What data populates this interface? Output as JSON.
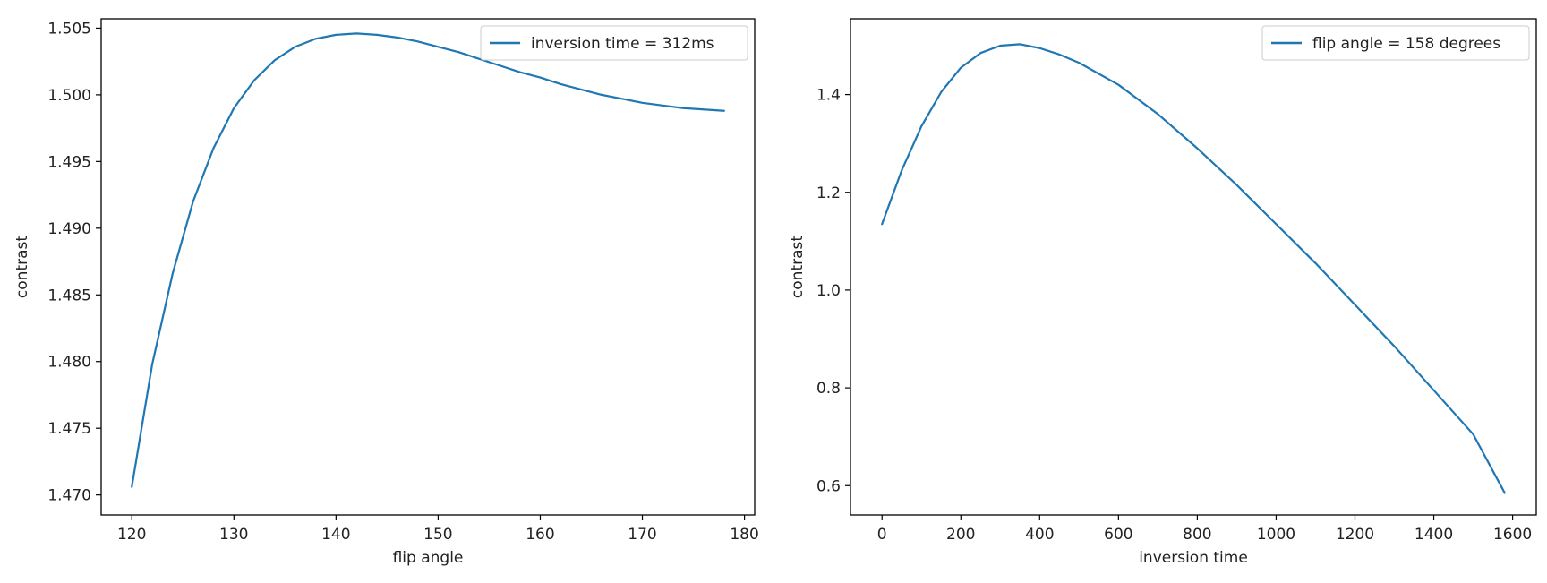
{
  "chart_data": [
    {
      "type": "line",
      "title": "",
      "xlabel": "flip angle",
      "ylabel": "contrast",
      "xlim": [
        117,
        181
      ],
      "ylim": [
        1.4685,
        1.5057
      ],
      "xticks": [
        120,
        130,
        140,
        150,
        160,
        170,
        180
      ],
      "xtick_labels": [
        "120",
        "130",
        "140",
        "150",
        "160",
        "170",
        "180"
      ],
      "yticks": [
        1.47,
        1.475,
        1.48,
        1.485,
        1.49,
        1.495,
        1.5,
        1.505
      ],
      "ytick_labels": [
        "1.470",
        "1.475",
        "1.480",
        "1.485",
        "1.490",
        "1.495",
        "1.500",
        "1.505"
      ],
      "grid": false,
      "legend_position": "top-right",
      "series": [
        {
          "name": "inversion time = 312ms",
          "color": "#1f77b4",
          "x": [
            120,
            122,
            124,
            126,
            128,
            130,
            132,
            134,
            136,
            138,
            140,
            142,
            144,
            146,
            148,
            150,
            152,
            154,
            156,
            158,
            160,
            162,
            164,
            166,
            168,
            170,
            172,
            174,
            176,
            178
          ],
          "y": [
            1.4706,
            1.4798,
            1.4866,
            1.492,
            1.496,
            1.499,
            1.5011,
            1.5026,
            1.5036,
            1.5042,
            1.5045,
            1.5046,
            1.5045,
            1.5043,
            1.504,
            1.5036,
            1.5032,
            1.5027,
            1.5022,
            1.5017,
            1.5013,
            1.5008,
            1.5004,
            1.5,
            1.4997,
            1.4994,
            1.4992,
            1.499,
            1.4989,
            1.4988
          ]
        }
      ]
    },
    {
      "type": "line",
      "title": "",
      "xlabel": "inversion time",
      "ylabel": "contrast",
      "xlim": [
        -80,
        1660
      ],
      "ylim": [
        0.54,
        1.555
      ],
      "xticks": [
        0,
        200,
        400,
        600,
        800,
        1000,
        1200,
        1400,
        1600
      ],
      "xtick_labels": [
        "0",
        "200",
        "400",
        "600",
        "800",
        "1000",
        "1200",
        "1400",
        "1600"
      ],
      "yticks": [
        0.6,
        0.8,
        1.0,
        1.2,
        1.4
      ],
      "ytick_labels": [
        "0.6",
        "0.8",
        "1.0",
        "1.2",
        "1.4"
      ],
      "grid": false,
      "legend_position": "top-right",
      "series": [
        {
          "name": "flip angle = 158 degrees",
          "color": "#1f77b4",
          "x": [
            0,
            50,
            100,
            150,
            200,
            250,
            300,
            350,
            400,
            450,
            500,
            600,
            700,
            800,
            900,
            1000,
            1100,
            1200,
            1300,
            1400,
            1500,
            1580
          ],
          "y": [
            1.135,
            1.245,
            1.335,
            1.405,
            1.455,
            1.485,
            1.5,
            1.503,
            1.495,
            1.482,
            1.465,
            1.42,
            1.36,
            1.29,
            1.215,
            1.135,
            1.055,
            0.97,
            0.885,
            0.795,
            0.705,
            0.585
          ]
        }
      ]
    }
  ]
}
